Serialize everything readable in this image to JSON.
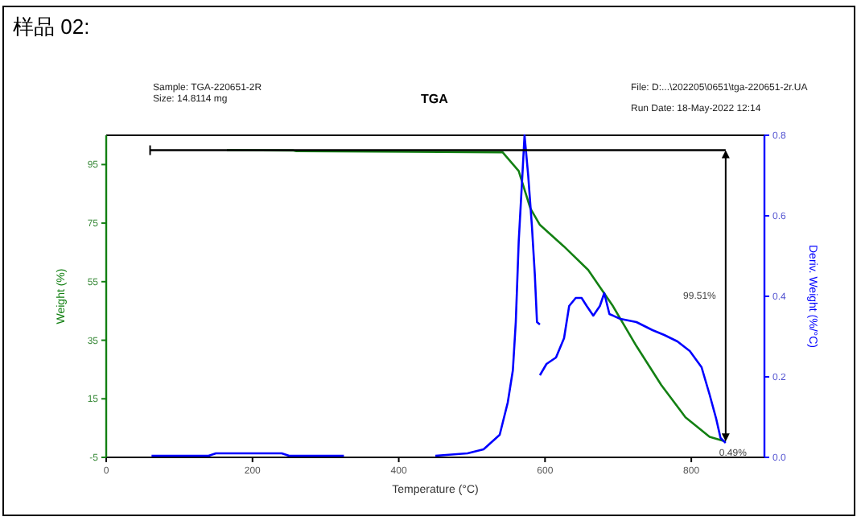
{
  "chart_data": {
    "type": "line",
    "title": "样品 02:",
    "subtitle": "TGA",
    "xlabel": "Temperature (°C)",
    "ylabel": "Weight (%)",
    "y2label": "Deriv. Weight (%/°C)",
    "annotations": [
      "Sample: TGA-220651-2R",
      "Size: 14.8114 mg",
      "File: D:...\\202205\\0651\\tga-220651-2r.UA",
      "Run Date: 18-May-2022 12:14",
      "99.51%",
      "0.49%"
    ],
    "xlim": [
      0,
      900
    ],
    "xticks": [
      0,
      200,
      400,
      600,
      800
    ],
    "ylim": [
      -5,
      105
    ],
    "yticks": [
      -5,
      15,
      35,
      55,
      75,
      95
    ],
    "y2lim": [
      0,
      0.8
    ],
    "y2ticks": [
      {
        "value": 0,
        "label": "0.0"
      },
      0.2,
      0.4,
      0.6,
      0.8
    ],
    "grid": false,
    "marker": "none",
    "line_style": "solid",
    "series": [
      {
        "color": "#138013",
        "axis": "y",
        "x": [
          165,
          256,
          260,
          542,
          564,
          580,
          593,
          626,
          659,
          692,
          725,
          759,
          792,
          825,
          840,
          847
        ],
        "values": [
          99.9,
          99.8,
          99.6,
          99.2,
          92.8,
          80,
          74.4,
          67,
          59,
          47,
          33,
          19.7,
          8.7,
          2,
          0.9,
          0.4
        ]
      },
      {
        "color": "#0000ff",
        "axis": "y2",
        "x": [
          62,
          140,
          150,
          240,
          250,
          325,
          null,
          450,
          494,
          516,
          538,
          549,
          556,
          560,
          564,
          569,
          572,
          577,
          582,
          586,
          589,
          593,
          null,
          593,
          602,
          615,
          626,
          633,
          642,
          650,
          657,
          666,
          675,
          681,
          688,
          703,
          725,
          747,
          763,
          781,
          798,
          814,
          825,
          834,
          840,
          847
        ],
        "values": [
          0.004,
          0.004,
          0.01,
          0.01,
          0.004,
          0.004,
          null,
          0.004,
          0.01,
          0.02,
          0.056,
          0.136,
          0.216,
          0.336,
          0.536,
          0.7,
          0.8,
          0.7,
          0.576,
          0.456,
          0.336,
          0.33,
          null,
          0.204,
          0.232,
          0.248,
          0.296,
          0.376,
          0.396,
          0.396,
          0.376,
          0.352,
          0.376,
          0.408,
          0.356,
          0.344,
          0.336,
          0.316,
          0.304,
          0.288,
          0.264,
          0.224,
          0.156,
          0.096,
          0.048,
          0.036
        ]
      },
      {
        "color": "#000000",
        "axis": "y",
        "x": [
          60,
          847
        ],
        "values": [
          99.9,
          99.9
        ]
      }
    ]
  }
}
